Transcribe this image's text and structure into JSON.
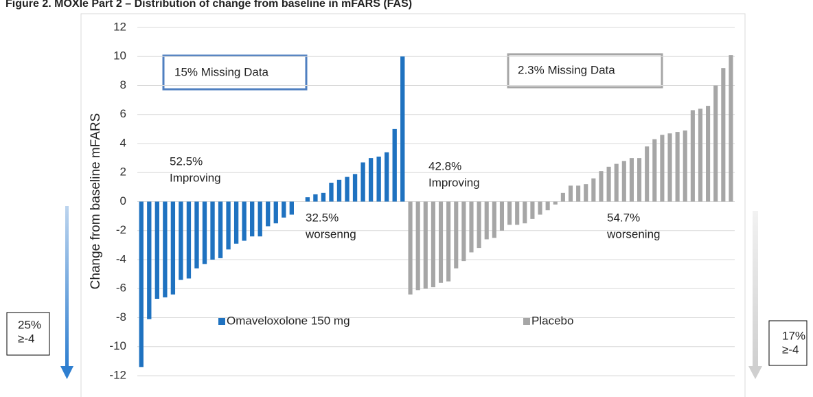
{
  "chart_data": {
    "type": "bar",
    "title": "Figure 2. MOXIe Part 2 – Distribution of change from baseline in mFARS (FAS)",
    "y_label": "Change from baseline mFARS",
    "ylim": [
      -12,
      12
    ],
    "yticks": [
      -12,
      -10,
      -8,
      -6,
      -4,
      -2,
      0,
      2,
      4,
      6,
      8,
      10,
      12
    ],
    "grid": true,
    "series": [
      {
        "name": "Omaveloxolone 150 mg",
        "color": "#1f72c0",
        "values": [
          -11.4,
          -8.1,
          -6.7,
          -6.6,
          -6.4,
          -5.4,
          -5.3,
          -4.6,
          -4.3,
          -4.0,
          -3.9,
          -3.3,
          -2.9,
          -2.7,
          -2.4,
          -2.4,
          -1.7,
          -1.5,
          -1.1,
          -0.9,
          0,
          0.3,
          0.5,
          0.6,
          1.3,
          1.5,
          1.7,
          1.9,
          2.7,
          3.0,
          3.1,
          3.4,
          5.0,
          10.0
        ]
      },
      {
        "name": "Placebo",
        "color": "#a6a6a6",
        "values": [
          -6.4,
          -6.1,
          -6.0,
          -5.9,
          -5.6,
          -5.5,
          -4.6,
          -4.1,
          -3.5,
          -3.2,
          -2.6,
          -2.5,
          -2.0,
          -1.6,
          -1.6,
          -1.5,
          -1.2,
          -0.9,
          -0.6,
          -0.2,
          0.6,
          1.1,
          1.1,
          1.2,
          1.6,
          2.1,
          2.4,
          2.6,
          2.8,
          3.0,
          3.0,
          3.8,
          4.3,
          4.6,
          4.7,
          4.8,
          4.9,
          6.3,
          6.4,
          6.6,
          8.0,
          9.2,
          10.1
        ]
      }
    ],
    "annotations": [
      {
        "lines": [
          "15% Missing Data"
        ]
      },
      {
        "lines": [
          "2.3% Missing Data"
        ]
      },
      {
        "lines": [
          "52.5%",
          "Improving"
        ]
      },
      {
        "lines": [
          "32.5%",
          "worsenng"
        ]
      },
      {
        "lines": [
          "42.8%",
          "Improving"
        ]
      },
      {
        "lines": [
          "54.7%",
          "worsening"
        ]
      },
      {
        "lines": [
          "25%",
          "≥-4"
        ]
      },
      {
        "lines": [
          "17%",
          "≥-4"
        ]
      }
    ]
  }
}
